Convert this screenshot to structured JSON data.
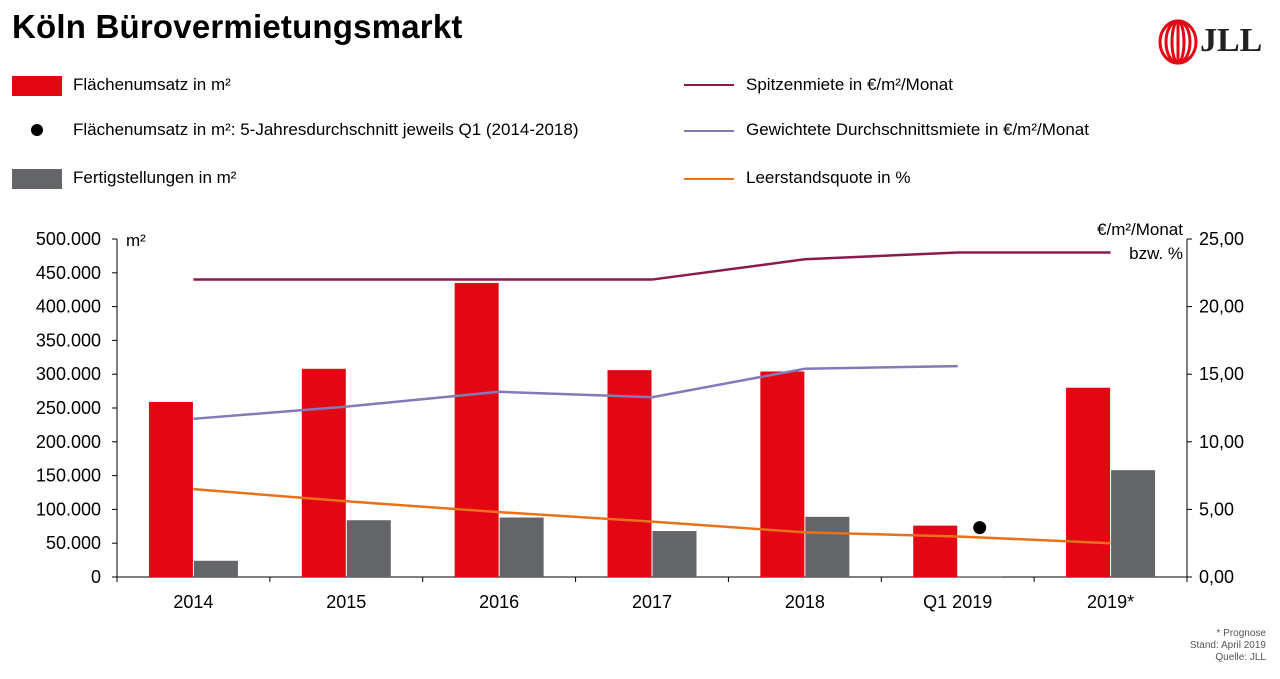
{
  "title": "Köln Bürovermietungsmarkt",
  "logo": {
    "text": "JLL",
    "color": "#e30613"
  },
  "legend": [
    {
      "label": "Flächenumsatz in m²",
      "kind": "bar",
      "color": "#e30613"
    },
    {
      "label": "Flächenumsatz in m²: 5-Jahresdurchschnitt jeweils Q1 (2014-2018)",
      "kind": "dot",
      "color": "#000000"
    },
    {
      "label": "Fertigstellungen in m²",
      "kind": "bar",
      "color": "#636569"
    },
    {
      "label": "Spitzenmiete in €/m²/Monat",
      "kind": "line",
      "color": "#8b1a4a"
    },
    {
      "label": "Gewichtete Durchschnittsmiete in €/m²/Monat",
      "kind": "line",
      "color": "#8579b8"
    },
    {
      "label": "Leerstandsquote in %",
      "kind": "line",
      "color": "#e8721c"
    }
  ],
  "notes": [
    "* Prognose",
    "Stand: April 2019",
    "Quelle: JLL"
  ],
  "chart_data": {
    "type": "bar",
    "categories": [
      "2014",
      "2015",
      "2016",
      "2017",
      "2018",
      "Q1 2019",
      "2019*"
    ],
    "left_axis": {
      "label": "m²",
      "ylim": [
        0,
        500000
      ],
      "ticks": [
        0,
        50000,
        100000,
        150000,
        200000,
        250000,
        300000,
        350000,
        400000,
        450000,
        500000
      ],
      "tick_labels": [
        "0",
        "50.000",
        "100.000",
        "150.000",
        "200.000",
        "250.000",
        "300.000",
        "350.000",
        "400.000",
        "450.000",
        "500.000"
      ]
    },
    "right_axis": {
      "label_line1": "€/m²/Monat",
      "label_line2": "bzw. %",
      "ylim": [
        0,
        25
      ],
      "ticks": [
        0,
        5,
        10,
        15,
        20,
        25
      ],
      "tick_labels": [
        "0,00",
        "5,00",
        "10,00",
        "15,00",
        "20,00",
        "25,00"
      ]
    },
    "series": [
      {
        "name": "Flächenumsatz in m²",
        "type": "bar",
        "axis": "left",
        "color": "#e30613",
        "values": [
          259000,
          308000,
          435000,
          306000,
          304000,
          76000,
          280000
        ]
      },
      {
        "name": "Fertigstellungen in m²",
        "type": "bar",
        "axis": "left",
        "color": "#636569",
        "values": [
          24000,
          84000,
          88000,
          68000,
          89000,
          1000,
          158000
        ]
      },
      {
        "name": "Flächenumsatz in m²: 5-Jahresdurchschnitt jeweils Q1 (2014-2018)",
        "type": "point",
        "axis": "left",
        "color": "#000000",
        "values": [
          null,
          null,
          null,
          null,
          null,
          73000,
          null
        ]
      },
      {
        "name": "Spitzenmiete in €/m²/Monat",
        "type": "line",
        "axis": "right",
        "color": "#8b1a4a",
        "values": [
          22.0,
          22.0,
          22.0,
          22.0,
          23.5,
          24.0,
          24.0
        ]
      },
      {
        "name": "Gewichtete Durchschnittsmiete in €/m²/Monat",
        "type": "line",
        "axis": "right",
        "color": "#8579b8",
        "values": [
          11.7,
          12.6,
          13.7,
          13.3,
          15.4,
          15.6,
          null
        ]
      },
      {
        "name": "Leerstandsquote in %",
        "type": "line",
        "axis": "right",
        "color": "#e8721c",
        "values": [
          6.5,
          5.6,
          4.8,
          4.1,
          3.3,
          3.0,
          2.5
        ]
      }
    ]
  }
}
